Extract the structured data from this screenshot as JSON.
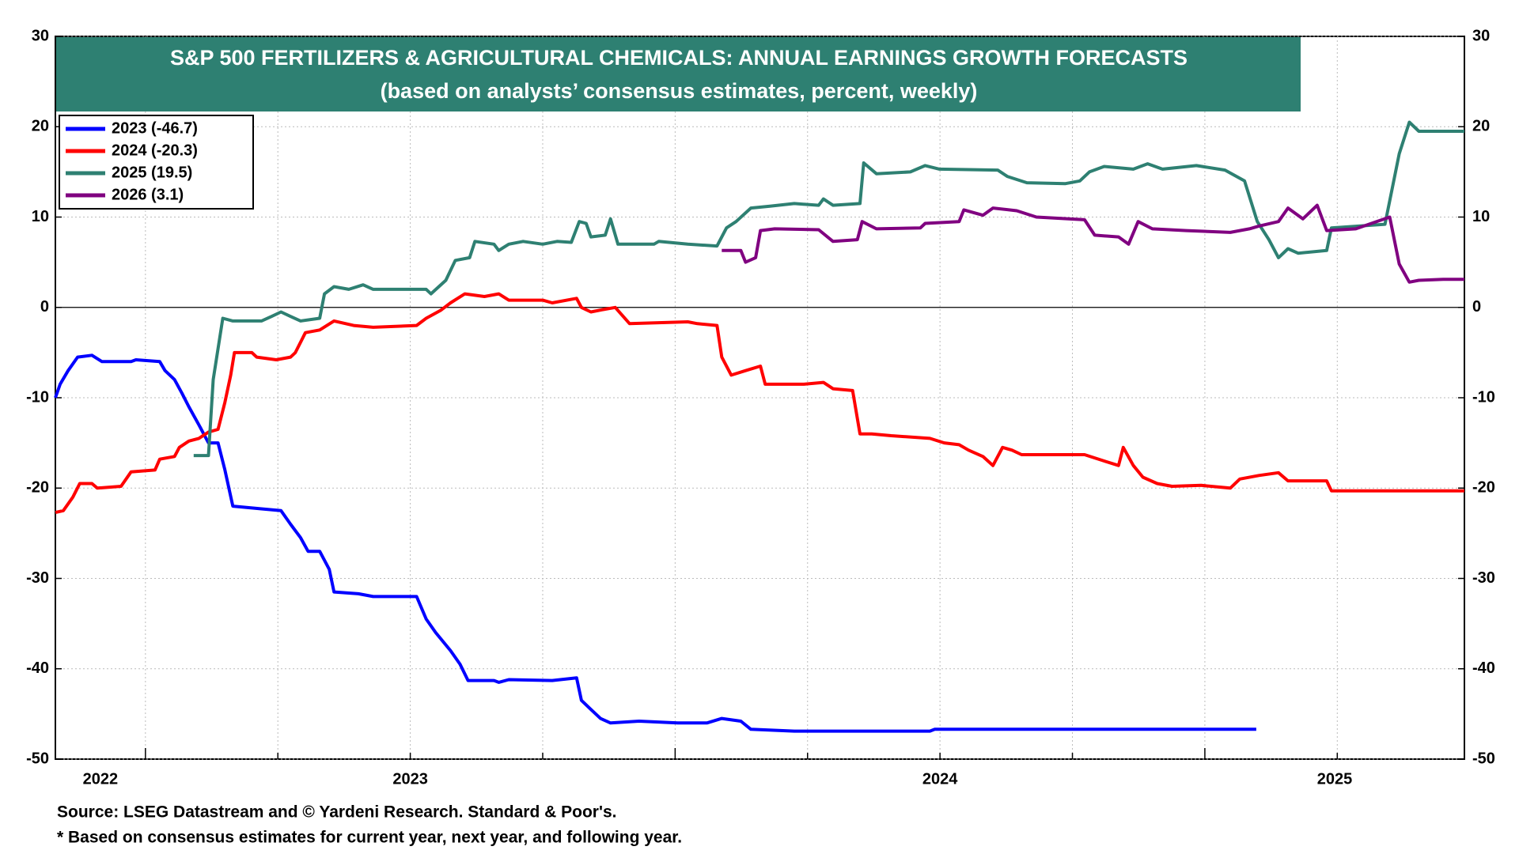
{
  "chart_data": {
    "type": "line",
    "title": "S&P 500 FERTILIZERS & AGRICULTURAL CHEMICALS: ANNUAL EARNINGS GROWTH FORECASTS",
    "subtitle": "(based on analysts’ consensus estimates, percent, weekly)",
    "source": "Source: LSEG Datastream and © Yardeni Research. Standard & Poor's.",
    "note": "* Based on consensus estimates for current year, next year, and following year.",
    "year_labels": [
      "2022",
      "2023",
      "2024",
      "2025"
    ],
    "xlim": [
      2022.83,
      2025.49
    ],
    "xticks": [
      2023,
      2023.25,
      2023.5,
      2023.75,
      2024,
      2024.25,
      2024.5,
      2024.75,
      2025,
      2025.25
    ],
    "ylim": [
      -50,
      30
    ],
    "yticks": [
      -50,
      -40,
      -30,
      -20,
      -10,
      0,
      10,
      20,
      30
    ],
    "y2lim": [
      -50,
      30
    ],
    "grid": true,
    "legend": "upper left",
    "series": [
      {
        "name": "2023 (-46.7)",
        "color": "#0000ff",
        "x": [
          2022.83,
          2022.839,
          2022.854,
          2022.872,
          2022.899,
          2022.918,
          2022.973,
          2022.982,
          2023.027,
          2023.037,
          2023.055,
          2023.069,
          2023.082,
          2023.101,
          2023.119,
          2023.137,
          2023.15,
          2023.165,
          2023.219,
          2023.256,
          2023.274,
          2023.293,
          2023.307,
          2023.329,
          2023.347,
          2023.356,
          2023.402,
          2023.43,
          2023.512,
          2023.53,
          2023.548,
          2023.576,
          2023.594,
          2023.609,
          2023.658,
          2023.667,
          2023.686,
          2023.768,
          2023.814,
          2023.823,
          2023.841,
          2023.859,
          2023.878,
          2023.932,
          2024.005,
          2024.06,
          2024.088,
          2024.124,
          2024.143,
          2024.225,
          2024.481,
          2024.49,
          2025.097
        ],
        "values": [
          -10,
          -8.5,
          -7,
          -5.5,
          -5.3,
          -6,
          -6,
          -5.8,
          -6,
          -7,
          -8,
          -9.5,
          -11,
          -13,
          -15,
          -15,
          -18,
          -22,
          -22.3,
          -22.5,
          -24,
          -25.5,
          -27,
          -27,
          -29,
          -31.5,
          -31.7,
          -32,
          -32,
          -34.5,
          -36,
          -38,
          -39.5,
          -41.3,
          -41.3,
          -41.5,
          -41.2,
          -41.3,
          -41,
          -43.5,
          -44.5,
          -45.5,
          -46,
          -45.8,
          -46,
          -46,
          -45.5,
          -45.8,
          -46.7,
          -46.9,
          -46.9,
          -46.7,
          -46.7
        ]
      },
      {
        "name": "2024 (-20.3)",
        "color": "#ff0000",
        "x": [
          2022.83,
          2022.845,
          2022.863,
          2022.876,
          2022.899,
          2022.909,
          2022.954,
          2022.973,
          2023.018,
          2023.027,
          2023.055,
          2023.064,
          2023.082,
          2023.101,
          2023.119,
          2023.137,
          2023.15,
          2023.161,
          2023.168,
          2023.201,
          2023.21,
          2023.247,
          2023.274,
          2023.283,
          2023.302,
          2023.329,
          2023.356,
          2023.393,
          2023.43,
          2023.512,
          2023.53,
          2023.558,
          2023.576,
          2023.603,
          2023.64,
          2023.667,
          2023.686,
          2023.75,
          2023.768,
          2023.814,
          2023.823,
          2023.841,
          2023.868,
          2023.887,
          2023.914,
          2024.024,
          2024.042,
          2024.079,
          2024.088,
          2024.106,
          2024.133,
          2024.161,
          2024.17,
          2024.207,
          2024.243,
          2024.28,
          2024.298,
          2024.335,
          2024.349,
          2024.371,
          2024.408,
          2024.481,
          2024.508,
          2024.536,
          2024.554,
          2024.581,
          2024.6,
          2024.618,
          2024.636,
          2024.654,
          2024.773,
          2024.81,
          2024.837,
          2024.846,
          2024.865,
          2024.883,
          2024.91,
          2024.938,
          2024.993,
          2025.048,
          2025.066,
          2025.102,
          2025.139,
          2025.157,
          2025.23,
          2025.239,
          2025.49
        ],
        "values": [
          -22.7,
          -22.5,
          -21,
          -19.5,
          -19.5,
          -20,
          -19.8,
          -18.2,
          -18,
          -16.8,
          -16.5,
          -15.5,
          -14.8,
          -14.5,
          -13.8,
          -13.5,
          -10.5,
          -7.5,
          -5,
          -5,
          -5.5,
          -5.8,
          -5.5,
          -5,
          -2.8,
          -2.5,
          -1.5,
          -2,
          -2.2,
          -2,
          -1.2,
          -0.3,
          0.5,
          1.5,
          1.2,
          1.5,
          0.8,
          0.8,
          0.5,
          1,
          0,
          -0.5,
          -0.2,
          0,
          -1.8,
          -1.6,
          -1.8,
          -2,
          -5.5,
          -7.5,
          -7,
          -6.5,
          -8.5,
          -8.5,
          -8.5,
          -8.3,
          -9,
          -9.2,
          -14,
          -14,
          -14.2,
          -14.5,
          -15,
          -15.2,
          -15.8,
          -16.5,
          -17.5,
          -15.5,
          -15.8,
          -16.3,
          -16.3,
          -17,
          -17.5,
          -15.5,
          -17.5,
          -18.8,
          -19.5,
          -19.8,
          -19.7,
          -20,
          -19,
          -18.6,
          -18.3,
          -19.2,
          -19.2,
          -20.3,
          -20.3
        ]
      },
      {
        "name": "2025 (19.5)",
        "color": "#2e8072",
        "x": [
          2023.091,
          2023.119,
          2023.128,
          2023.146,
          2023.165,
          2023.219,
          2023.238,
          2023.256,
          2023.274,
          2023.293,
          2023.329,
          2023.338,
          2023.356,
          2023.384,
          2023.411,
          2023.43,
          2023.53,
          2023.539,
          2023.567,
          2023.585,
          2023.612,
          2023.622,
          2023.658,
          2023.667,
          2023.686,
          2023.713,
          2023.75,
          2023.777,
          2023.804,
          2023.819,
          2023.832,
          2023.841,
          2023.868,
          2023.878,
          2023.892,
          2023.96,
          2023.969,
          2024.024,
          2024.079,
          2024.097,
          2024.115,
          2024.143,
          2024.179,
          2024.225,
          2024.271,
          2024.28,
          2024.298,
          2024.349,
          2024.356,
          2024.38,
          2024.444,
          2024.472,
          2024.499,
          2024.609,
          2024.627,
          2024.664,
          2024.737,
          2024.764,
          2024.782,
          2024.81,
          2024.865,
          2024.892,
          2024.92,
          2024.984,
          2025.038,
          2025.075,
          2025.099,
          2025.121,
          2025.139,
          2025.157,
          2025.176,
          2025.23,
          2025.239,
          2025.34,
          2025.367,
          2025.386,
          2025.404,
          2025.49
        ],
        "values": [
          -16.4,
          -16.4,
          -8,
          -1.2,
          -1.5,
          -1.5,
          -1,
          -0.5,
          -1,
          -1.5,
          -1.2,
          1.5,
          2.3,
          2,
          2.5,
          2,
          2,
          1.5,
          3,
          5.2,
          5.5,
          7.3,
          7,
          6.3,
          7,
          7.3,
          7,
          7.3,
          7.2,
          9.5,
          9.3,
          7.8,
          8,
          9.8,
          7,
          7,
          7.3,
          7,
          6.8,
          8.8,
          9.5,
          11,
          11.2,
          11.5,
          11.3,
          12,
          11.3,
          11.5,
          16,
          14.8,
          15,
          15.7,
          15.3,
          15.2,
          14.5,
          13.8,
          13.7,
          14,
          15,
          15.6,
          15.3,
          15.9,
          15.3,
          15.7,
          15.2,
          14,
          9.5,
          7.5,
          5.5,
          6.5,
          6,
          6.3,
          8.8,
          9.2,
          17,
          20.5,
          19.5,
          19.5
        ]
      },
      {
        "name": "2026 (3.1)",
        "color": "#800080",
        "x": [
          2024.088,
          2024.124,
          2024.133,
          2024.152,
          2024.161,
          2024.188,
          2024.271,
          2024.298,
          2024.344,
          2024.353,
          2024.38,
          2024.463,
          2024.472,
          2024.536,
          2024.545,
          2024.581,
          2024.6,
          2024.645,
          2024.682,
          2024.773,
          2024.792,
          2024.837,
          2024.856,
          2024.874,
          2024.901,
          2024.965,
          2025.048,
          2025.084,
          2025.102,
          2025.139,
          2025.157,
          2025.185,
          2025.212,
          2025.23,
          2025.285,
          2025.349,
          2025.367,
          2025.386,
          2025.404,
          2025.45,
          2025.49
        ],
        "values": [
          6.3,
          6.3,
          5,
          5.5,
          8.5,
          8.7,
          8.6,
          7.3,
          7.5,
          9.5,
          8.7,
          8.8,
          9.3,
          9.5,
          10.8,
          10.2,
          11,
          10.7,
          10,
          9.7,
          8,
          7.8,
          7,
          9.5,
          8.7,
          8.5,
          8.3,
          8.7,
          9,
          9.5,
          11,
          9.8,
          11.3,
          8.5,
          8.7,
          10,
          4.8,
          2.8,
          3,
          3.1,
          3.1
        ]
      }
    ]
  }
}
